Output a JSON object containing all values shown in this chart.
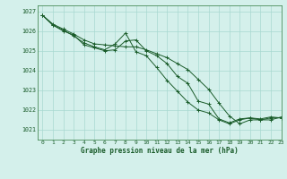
{
  "title": "Graphe pression niveau de la mer (hPa)",
  "bg_color": "#d4f0eb",
  "grid_color": "#a8d8d0",
  "line_color": "#1a5c2a",
  "text_color": "#1a5c2a",
  "border_color": "#4a8c5a",
  "xlim": [
    -0.5,
    23
  ],
  "ylim": [
    1020.5,
    1027.3
  ],
  "yticks": [
    1021,
    1022,
    1023,
    1024,
    1025,
    1026,
    1027
  ],
  "xticks": [
    0,
    1,
    2,
    3,
    4,
    5,
    6,
    7,
    8,
    9,
    10,
    11,
    12,
    13,
    14,
    15,
    16,
    17,
    18,
    19,
    20,
    21,
    22,
    23
  ],
  "series1": [
    1026.8,
    1026.3,
    1026.0,
    1025.8,
    1025.3,
    1025.15,
    1025.0,
    1025.05,
    1025.5,
    1025.55,
    1025.0,
    1024.75,
    1024.35,
    1023.7,
    1023.35,
    1022.45,
    1022.3,
    1021.55,
    1021.35,
    1021.55,
    1021.6,
    1021.55,
    1021.65,
    1021.6
  ],
  "series2": [
    1026.8,
    1026.3,
    1026.05,
    1025.75,
    1025.4,
    1025.2,
    1025.05,
    1025.35,
    1025.9,
    1024.95,
    1024.75,
    1024.15,
    1023.5,
    1022.95,
    1022.4,
    1022.0,
    1021.85,
    1021.5,
    1021.3,
    1021.5,
    1021.6,
    1021.5,
    1021.6,
    1021.6
  ],
  "series3": [
    1026.8,
    1026.35,
    1026.1,
    1025.85,
    1025.55,
    1025.35,
    1025.3,
    1025.25,
    1025.2,
    1025.2,
    1025.05,
    1024.85,
    1024.65,
    1024.35,
    1024.05,
    1023.55,
    1023.05,
    1022.35,
    1021.7,
    1021.3,
    1021.5,
    1021.5,
    1021.5,
    1021.65
  ]
}
